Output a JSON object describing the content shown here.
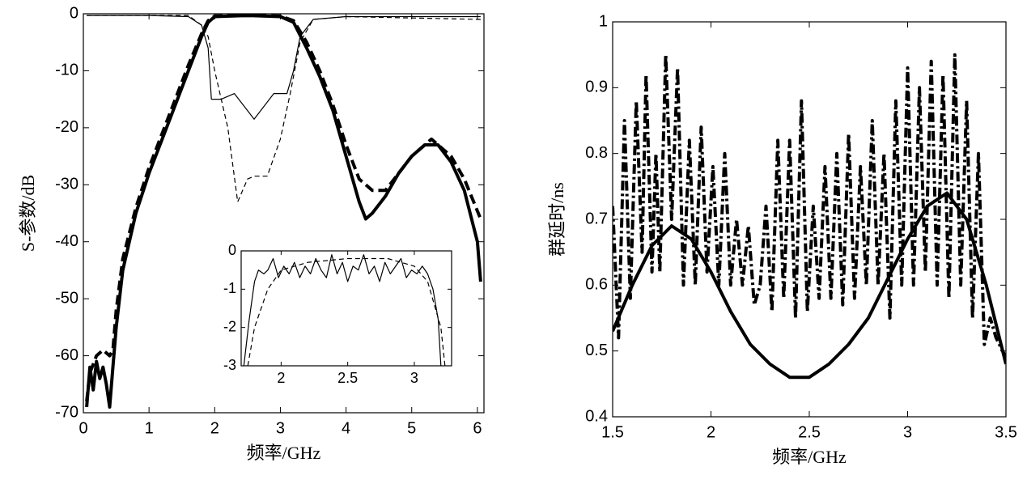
{
  "chart_data": [
    {
      "type": "line",
      "xlabel": "频率/GHz",
      "ylabel": "S-参数/dB",
      "xlim": [
        0,
        6.1
      ],
      "xticks": [
        0,
        1,
        2,
        3,
        4,
        5,
        6
      ],
      "ylim": [
        -70,
        0
      ],
      "yticks": [
        0,
        -10,
        -20,
        -30,
        -40,
        -50,
        -60,
        -70
      ],
      "series": [
        {
          "color": "#000",
          "weight": "thick",
          "line_style": "solid",
          "x": [
            0.05,
            0.1,
            0.15,
            0.2,
            0.25,
            0.3,
            0.35,
            0.4,
            0.45,
            0.5,
            0.6,
            0.8,
            1.0,
            1.2,
            1.4,
            1.6,
            1.8,
            1.9,
            2.0,
            2.5,
            3.0,
            3.2,
            3.4,
            3.6,
            3.8,
            4.0,
            4.2,
            4.3,
            4.4,
            4.6,
            4.8,
            5.0,
            5.2,
            5.4,
            5.6,
            5.8,
            6.0,
            6.05
          ],
          "values": [
            -69,
            -62,
            -66,
            -61,
            -64,
            -62,
            -65,
            -69,
            -62,
            -55,
            -45,
            -35,
            -28,
            -22,
            -16,
            -10,
            -4,
            -1.5,
            -0.5,
            -0.3,
            -0.5,
            -1.5,
            -6,
            -11,
            -17,
            -25,
            -33,
            -36,
            -35,
            -32,
            -28,
            -25,
            -23,
            -23,
            -26,
            -31,
            -40,
            -47
          ]
        },
        {
          "color": "#000",
          "weight": "thick",
          "line_style": "dashed",
          "x": [
            0.05,
            0.1,
            0.2,
            0.3,
            0.4,
            0.45,
            0.5,
            0.6,
            0.8,
            1.0,
            1.2,
            1.4,
            1.6,
            1.8,
            1.9,
            2.0,
            2.5,
            3.0,
            3.2,
            3.4,
            3.6,
            3.8,
            4.0,
            4.2,
            4.4,
            4.6,
            4.8,
            5.0,
            5.3,
            5.6,
            5.8,
            6.05
          ],
          "values": [
            -68,
            -63,
            -60,
            -59,
            -60,
            -59,
            -52,
            -43,
            -34,
            -27,
            -21,
            -15,
            -9,
            -3.5,
            -1.2,
            -0.4,
            -0.3,
            -0.4,
            -1.2,
            -5,
            -10,
            -16,
            -23,
            -29,
            -31,
            -31,
            -28,
            -25,
            -22,
            -25,
            -29,
            -36
          ]
        },
        {
          "color": "#000",
          "weight": "thin",
          "line_style": "solid",
          "x": [
            0.05,
            1.0,
            1.6,
            1.8,
            1.9,
            1.95,
            2.1,
            2.3,
            2.6,
            2.9,
            3.1,
            3.2,
            3.3,
            3.5,
            4.0,
            6.05
          ],
          "values": [
            -0.3,
            -0.3,
            -0.5,
            -2,
            -6,
            -15,
            -15,
            -14,
            -18.5,
            -14,
            -14,
            -10,
            -4,
            -1,
            -0.5,
            -0.5
          ]
        },
        {
          "color": "#000",
          "weight": "thin",
          "line_style": "dashed",
          "x": [
            0.05,
            1.6,
            1.8,
            1.9,
            2.0,
            2.2,
            2.35,
            2.5,
            2.6,
            2.8,
            3.0,
            3.15,
            3.3,
            3.5,
            4.0,
            6.05
          ],
          "values": [
            -0.3,
            -0.3,
            -2,
            -4,
            -10,
            -20,
            -33,
            -29,
            -28.5,
            -28.5,
            -22,
            -14,
            -5,
            -1,
            -0.5,
            -1
          ]
        }
      ]
    },
    {
      "type": "line",
      "xlim": [
        1.7,
        3.28
      ],
      "xticks": [
        2,
        2.5,
        3
      ],
      "ylim": [
        -3,
        0
      ],
      "yticks": [
        0,
        -1,
        -2,
        -3
      ],
      "series": [
        {
          "color": "#000",
          "weight": "thin",
          "line_style": "solid",
          "x": [
            1.72,
            1.76,
            1.8,
            1.83,
            1.87,
            1.9,
            1.94,
            1.98,
            2.02,
            2.06,
            2.1,
            2.14,
            2.18,
            2.22,
            2.26,
            2.3,
            2.34,
            2.38,
            2.42,
            2.46,
            2.5,
            2.54,
            2.58,
            2.62,
            2.66,
            2.7,
            2.74,
            2.78,
            2.82,
            2.86,
            2.9,
            2.94,
            2.98,
            3.02,
            3.06,
            3.1,
            3.14,
            3.18,
            3.2
          ],
          "values": [
            -3,
            -1.8,
            -0.8,
            -0.5,
            -0.6,
            -0.5,
            -0.2,
            -0.7,
            -0.4,
            -0.6,
            -0.3,
            -0.7,
            -0.4,
            -0.6,
            -0.2,
            -0.5,
            -0.7,
            -0.1,
            -0.6,
            -0.3,
            -0.8,
            -0.4,
            -0.5,
            -0.1,
            -0.6,
            -0.4,
            -0.8,
            -0.3,
            -0.6,
            -0.4,
            -0.2,
            -0.7,
            -0.5,
            -0.6,
            -0.4,
            -0.6,
            -1,
            -1.8,
            -3
          ]
        },
        {
          "color": "#000",
          "weight": "thin",
          "line_style": "dashed",
          "x": [
            1.75,
            1.8,
            1.9,
            2.0,
            2.2,
            2.5,
            2.8,
            3.0,
            3.1,
            3.2,
            3.23
          ],
          "values": [
            -3,
            -2,
            -1,
            -0.5,
            -0.3,
            -0.2,
            -0.2,
            -0.4,
            -0.8,
            -2,
            -3
          ]
        }
      ]
    },
    {
      "type": "line",
      "xlabel": "频率/GHz",
      "ylabel": "群延时/ns",
      "xlim": [
        1.5,
        3.5
      ],
      "xticks": [
        1.5,
        2,
        2.5,
        3,
        3.5
      ],
      "ylim": [
        0.4,
        1
      ],
      "yticks": [
        0.4,
        0.5,
        0.6,
        0.7,
        0.8,
        0.9,
        1
      ],
      "series": [
        {
          "color": "#000",
          "weight": "thick",
          "line_style": "solid",
          "x": [
            1.5,
            1.6,
            1.7,
            1.8,
            1.9,
            2.0,
            2.1,
            2.2,
            2.3,
            2.4,
            2.5,
            2.6,
            2.7,
            2.8,
            2.9,
            3.0,
            3.1,
            3.2,
            3.3,
            3.4,
            3.5
          ],
          "values": [
            0.53,
            0.6,
            0.66,
            0.69,
            0.67,
            0.62,
            0.56,
            0.51,
            0.48,
            0.46,
            0.46,
            0.48,
            0.51,
            0.55,
            0.61,
            0.67,
            0.72,
            0.74,
            0.7,
            0.6,
            0.48
          ]
        },
        {
          "color": "#000",
          "weight": "thick",
          "line_style": "dashdot",
          "x": [
            1.5,
            1.53,
            1.56,
            1.59,
            1.62,
            1.65,
            1.67,
            1.7,
            1.72,
            1.74,
            1.77,
            1.8,
            1.83,
            1.86,
            1.89,
            1.92,
            1.95,
            1.98,
            2.01,
            2.04,
            2.07,
            2.1,
            2.13,
            2.16,
            2.19,
            2.22,
            2.25,
            2.28,
            2.31,
            2.34,
            2.37,
            2.4,
            2.43,
            2.46,
            2.49,
            2.52,
            2.55,
            2.58,
            2.61,
            2.64,
            2.67,
            2.7,
            2.73,
            2.76,
            2.79,
            2.82,
            2.85,
            2.88,
            2.91,
            2.94,
            2.97,
            3.0,
            3.03,
            3.06,
            3.09,
            3.12,
            3.15,
            3.18,
            3.21,
            3.24,
            3.27,
            3.3,
            3.33,
            3.36,
            3.39,
            3.42,
            3.45,
            3.5
          ],
          "values": [
            0.72,
            0.52,
            0.85,
            0.58,
            0.88,
            0.65,
            0.92,
            0.62,
            0.8,
            0.62,
            0.95,
            0.7,
            0.93,
            0.6,
            0.82,
            0.6,
            0.84,
            0.62,
            0.78,
            0.6,
            0.8,
            0.6,
            0.7,
            0.6,
            0.69,
            0.57,
            0.6,
            0.72,
            0.56,
            0.82,
            0.58,
            0.82,
            0.55,
            0.88,
            0.56,
            0.72,
            0.58,
            0.78,
            0.58,
            0.8,
            0.57,
            0.83,
            0.58,
            0.78,
            0.6,
            0.85,
            0.6,
            0.8,
            0.55,
            0.88,
            0.6,
            0.93,
            0.6,
            0.9,
            0.62,
            0.94,
            0.6,
            0.92,
            0.58,
            0.95,
            0.6,
            0.88,
            0.55,
            0.8,
            0.51,
            0.55,
            0.52,
            0.49
          ]
        }
      ]
    }
  ]
}
